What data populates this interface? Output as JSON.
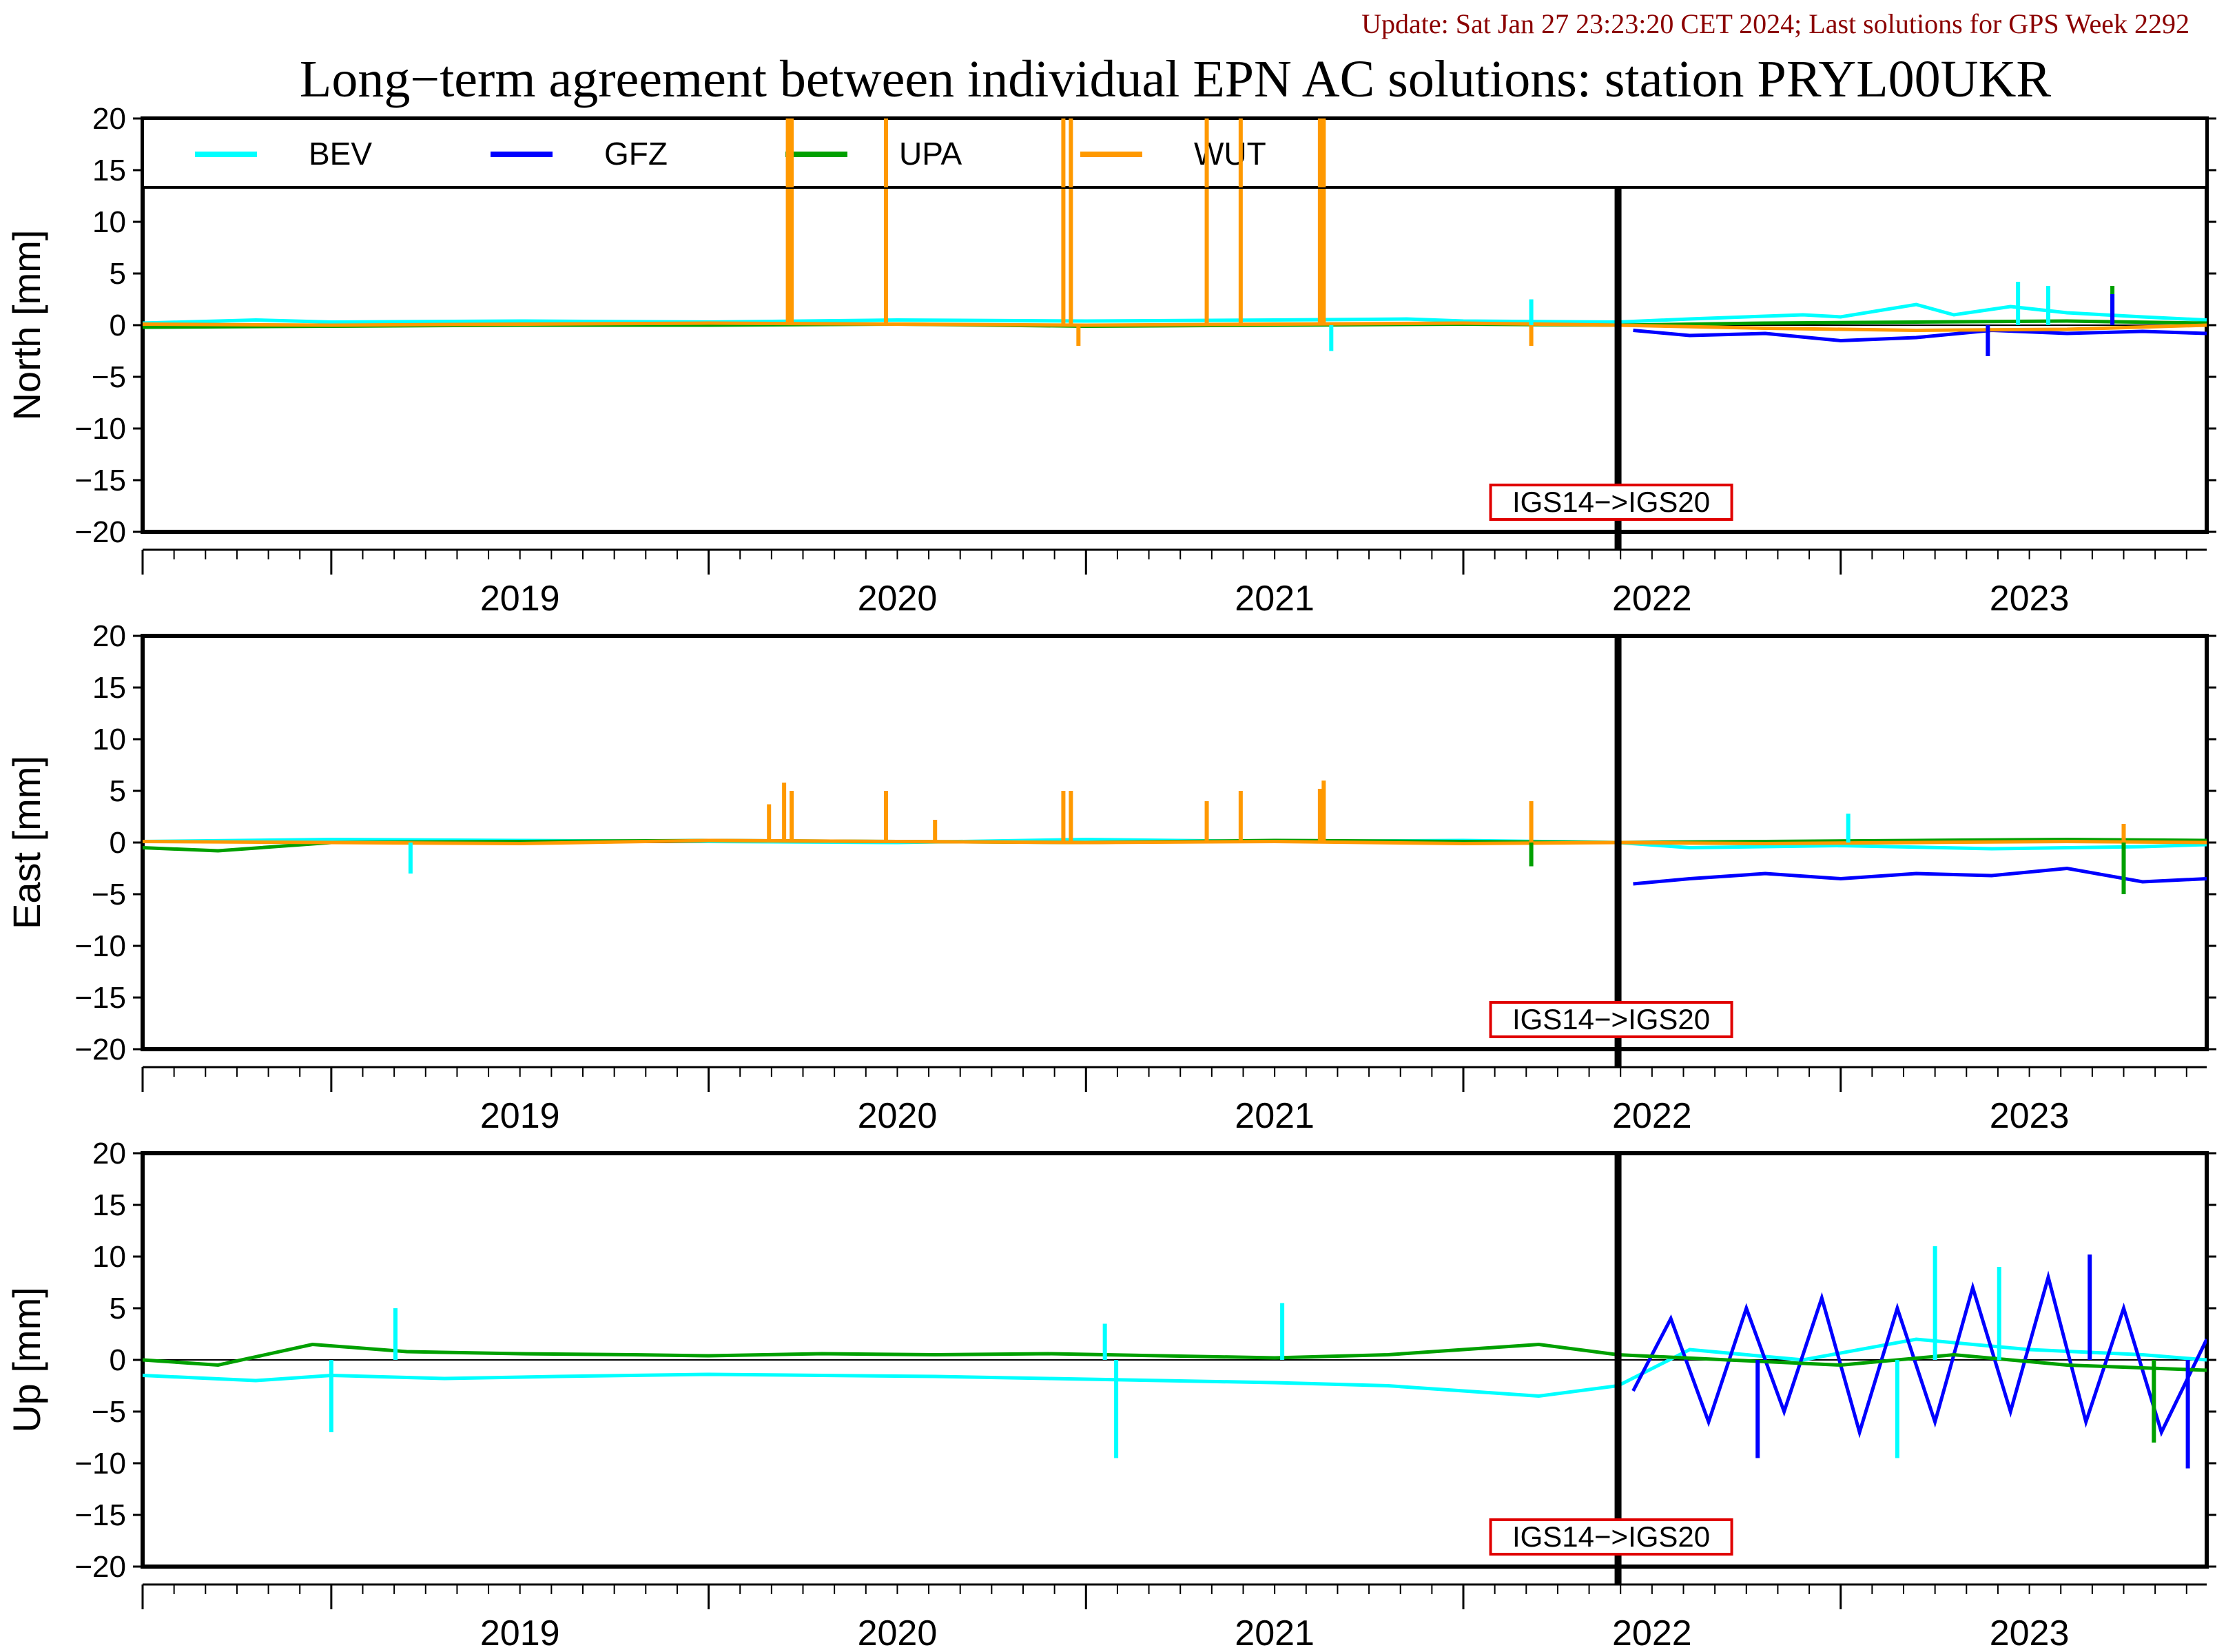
{
  "header": {
    "update_text": "Update: Sat Jan 27 23:23:20 CET 2024; Last solutions for GPS Week 2292",
    "title": "Long−term agreement between individual EPN AC solutions: station PRYL00UKR"
  },
  "colors": {
    "BEV": "#00ffff",
    "GFZ": "#0000ff",
    "UPA": "#00a000",
    "WUT": "#ff9900",
    "update_text": "#8b0000",
    "annotation_border": "#e00000"
  },
  "legend": {
    "items": [
      {
        "name": "BEV",
        "color": "#00ffff"
      },
      {
        "name": "GFZ",
        "color": "#0000ff"
      },
      {
        "name": "UPA",
        "color": "#00a000"
      },
      {
        "name": "WUT",
        "color": "#ff9900"
      }
    ]
  },
  "chart_data": [
    {
      "type": "line",
      "panel": "North",
      "ylabel": "North [mm]",
      "ylim": [
        -20,
        20
      ],
      "yticks": [
        -20,
        -15,
        -10,
        -5,
        0,
        5,
        10,
        15,
        20
      ],
      "xlim": [
        2018.5,
        2023.97
      ],
      "x_tick_labels": [
        "2019",
        "2020",
        "2021",
        "2022",
        "2023"
      ],
      "annotation": {
        "text": "IGS14−>IGS20",
        "x": 2022.41
      },
      "series": [
        {
          "name": "BEV",
          "x": [
            2018.5,
            2018.8,
            2019.0,
            2019.5,
            2020.0,
            2020.5,
            2021.0,
            2021.5,
            2021.85,
            2022.0,
            2022.41,
            2022.6,
            2022.9,
            2023.0,
            2023.2,
            2023.3,
            2023.45,
            2023.6,
            2023.8,
            2023.97
          ],
          "y": [
            0.2,
            0.5,
            0.3,
            0.4,
            0.3,
            0.5,
            0.4,
            0.5,
            0.6,
            0.4,
            0.3,
            0.6,
            1.0,
            0.8,
            2.0,
            1.0,
            1.8,
            1.2,
            0.8,
            0.5
          ]
        },
        {
          "name": "GFZ",
          "x": [
            2022.45,
            2022.6,
            2022.8,
            2023.0,
            2023.2,
            2023.4,
            2023.6,
            2023.8,
            2023.97
          ],
          "y": [
            -0.5,
            -1.0,
            -0.8,
            -1.5,
            -1.2,
            -0.5,
            -0.8,
            -0.6,
            -0.8
          ]
        },
        {
          "name": "UPA",
          "x": [
            2018.5,
            2019.0,
            2019.5,
            2020.0,
            2020.5,
            2021.0,
            2021.5,
            2022.0,
            2022.41,
            2022.8,
            2023.2,
            2023.6,
            2023.97
          ],
          "y": [
            -0.2,
            -0.1,
            0.0,
            0.0,
            0.1,
            -0.1,
            0.0,
            0.1,
            0.0,
            0.2,
            0.3,
            0.4,
            0.2
          ]
        },
        {
          "name": "WUT",
          "x": [
            2018.5,
            2019.0,
            2019.5,
            2020.0,
            2020.5,
            2021.0,
            2021.5,
            2022.0,
            2022.41,
            2022.8,
            2023.2,
            2023.6,
            2023.97
          ],
          "y": [
            0.1,
            0.0,
            0.1,
            0.2,
            0.1,
            0.0,
            0.1,
            0.2,
            0.0,
            -0.3,
            -0.5,
            -0.4,
            0.0
          ]
        }
      ],
      "spikes": [
        {
          "series": "WUT",
          "x": 2020.21,
          "y": 20
        },
        {
          "series": "WUT",
          "x": 2020.22,
          "y": 20
        },
        {
          "series": "WUT",
          "x": 2020.47,
          "y": 20
        },
        {
          "series": "WUT",
          "x": 2020.94,
          "y": 20
        },
        {
          "series": "WUT",
          "x": 2020.96,
          "y": 20
        },
        {
          "series": "WUT",
          "x": 2021.32,
          "y": 20
        },
        {
          "series": "WUT",
          "x": 2021.41,
          "y": 20
        },
        {
          "series": "WUT",
          "x": 2021.62,
          "y": 20
        },
        {
          "series": "WUT",
          "x": 2021.63,
          "y": 20
        },
        {
          "series": "WUT",
          "x": 2022.18,
          "y": -2
        },
        {
          "series": "WUT",
          "x": 2020.98,
          "y": -2
        },
        {
          "series": "BEV",
          "x": 2022.18,
          "y": 2.5
        },
        {
          "series": "BEV",
          "x": 2021.65,
          "y": -2.5
        },
        {
          "series": "BEV",
          "x": 2023.47,
          "y": 4.2
        },
        {
          "series": "BEV",
          "x": 2023.55,
          "y": 3.8
        },
        {
          "series": "UPA",
          "x": 2023.72,
          "y": 3.8
        },
        {
          "series": "GFZ",
          "x": 2023.72,
          "y": 3.0
        },
        {
          "series": "GFZ",
          "x": 2023.39,
          "y": -3.0
        }
      ]
    },
    {
      "type": "line",
      "panel": "East",
      "ylabel": "East [mm]",
      "ylim": [
        -20,
        20
      ],
      "yticks": [
        -20,
        -15,
        -10,
        -5,
        0,
        5,
        10,
        15,
        20
      ],
      "xlim": [
        2018.5,
        2023.97
      ],
      "x_tick_labels": [
        "2019",
        "2020",
        "2021",
        "2022",
        "2023"
      ],
      "annotation": {
        "text": "IGS14−>IGS20",
        "x": 2022.41
      },
      "series": [
        {
          "name": "BEV",
          "x": [
            2018.5,
            2019.0,
            2019.5,
            2020.0,
            2020.5,
            2021.0,
            2021.5,
            2022.0,
            2022.41,
            2022.6,
            2023.0,
            2023.4,
            2023.8,
            2023.97
          ],
          "y": [
            0.1,
            0.3,
            0.2,
            0.1,
            0.0,
            0.3,
            0.1,
            0.2,
            0.0,
            -0.5,
            -0.3,
            -0.6,
            -0.4,
            -0.2
          ]
        },
        {
          "name": "GFZ",
          "x": [
            2022.45,
            2022.6,
            2022.8,
            2023.0,
            2023.2,
            2023.4,
            2023.6,
            2023.8,
            2023.97
          ],
          "y": [
            -4.0,
            -3.5,
            -3.0,
            -3.5,
            -3.0,
            -3.2,
            -2.5,
            -3.8,
            -3.5
          ]
        },
        {
          "name": "UPA",
          "x": [
            2018.5,
            2018.7,
            2019.0,
            2019.5,
            2020.0,
            2020.5,
            2021.0,
            2021.5,
            2022.0,
            2022.41,
            2022.8,
            2023.2,
            2023.6,
            2023.97
          ],
          "y": [
            -0.5,
            -0.8,
            0.0,
            0.1,
            0.2,
            0.1,
            0.0,
            0.2,
            0.1,
            0.0,
            0.1,
            0.2,
            0.3,
            0.2
          ]
        },
        {
          "name": "WUT",
          "x": [
            2018.5,
            2019.0,
            2019.5,
            2020.0,
            2020.5,
            2021.0,
            2021.5,
            2022.0,
            2022.41,
            2022.8,
            2023.2,
            2023.6,
            2023.97
          ],
          "y": [
            0.1,
            0.0,
            -0.1,
            0.2,
            0.1,
            0.0,
            0.1,
            -0.1,
            0.0,
            -0.1,
            0.0,
            0.1,
            0.0
          ]
        }
      ],
      "spikes": [
        {
          "series": "WUT",
          "x": 2020.16,
          "y": 3.7
        },
        {
          "series": "WUT",
          "x": 2020.2,
          "y": 5.8
        },
        {
          "series": "WUT",
          "x": 2020.22,
          "y": 5.0
        },
        {
          "series": "WUT",
          "x": 2020.47,
          "y": 5.0
        },
        {
          "series": "WUT",
          "x": 2020.6,
          "y": 2.2
        },
        {
          "series": "WUT",
          "x": 2020.94,
          "y": 5.0
        },
        {
          "series": "WUT",
          "x": 2020.96,
          "y": 5.0
        },
        {
          "series": "WUT",
          "x": 2021.32,
          "y": 4.0
        },
        {
          "series": "WUT",
          "x": 2021.41,
          "y": 5.0
        },
        {
          "series": "WUT",
          "x": 2021.62,
          "y": 5.2
        },
        {
          "series": "WUT",
          "x": 2021.63,
          "y": 6.0
        },
        {
          "series": "WUT",
          "x": 2022.18,
          "y": 4.0
        },
        {
          "series": "WUT",
          "x": 2023.75,
          "y": 1.8
        },
        {
          "series": "BEV",
          "x": 2019.21,
          "y": -3.0
        },
        {
          "series": "BEV",
          "x": 2023.02,
          "y": 2.8
        },
        {
          "series": "UPA",
          "x": 2022.18,
          "y": -2.3
        },
        {
          "series": "UPA",
          "x": 2023.75,
          "y": -5.0
        }
      ]
    },
    {
      "type": "line",
      "panel": "Up",
      "ylabel": "Up [mm]",
      "ylim": [
        -20,
        20
      ],
      "yticks": [
        -20,
        -15,
        -10,
        -5,
        0,
        5,
        10,
        15,
        20
      ],
      "xlim": [
        2018.5,
        2023.97
      ],
      "x_tick_labels": [
        "2019",
        "2020",
        "2021",
        "2022",
        "2023"
      ],
      "annotation": {
        "text": "IGS14−>IGS20",
        "x": 2022.41
      },
      "series": [
        {
          "name": "BEV",
          "x": [
            2018.5,
            2018.8,
            2019.0,
            2019.3,
            2019.6,
            2020.0,
            2020.3,
            2020.6,
            2020.9,
            2021.2,
            2021.5,
            2021.8,
            2022.0,
            2022.2,
            2022.41,
            2022.6,
            2022.9,
            2023.2,
            2023.5,
            2023.8,
            2023.97
          ],
          "y": [
            -1.5,
            -2.0,
            -1.5,
            -1.8,
            -1.6,
            -1.4,
            -1.5,
            -1.6,
            -1.8,
            -2.0,
            -2.2,
            -2.5,
            -3.0,
            -3.5,
            -2.5,
            1.0,
            0.0,
            2.0,
            1.0,
            0.5,
            0.0
          ]
        },
        {
          "name": "GFZ",
          "x": [
            2022.45,
            2022.55,
            2022.65,
            2022.75,
            2022.85,
            2022.95,
            2023.05,
            2023.15,
            2023.25,
            2023.35,
            2023.45,
            2023.55,
            2023.65,
            2023.75,
            2023.85,
            2023.97
          ],
          "y": [
            -3.0,
            4.0,
            -6.0,
            5.0,
            -5.0,
            6.0,
            -7.0,
            5.0,
            -6.0,
            7.0,
            -5.0,
            8.0,
            -6.0,
            5.0,
            -7.0,
            2.0
          ]
        },
        {
          "name": "UPA",
          "x": [
            2018.5,
            2018.7,
            2018.95,
            2019.2,
            2019.5,
            2019.8,
            2020.0,
            2020.3,
            2020.6,
            2020.9,
            2021.2,
            2021.5,
            2021.8,
            2022.0,
            2022.2,
            2022.41,
            2022.7,
            2023.0,
            2023.3,
            2023.6,
            2023.97
          ],
          "y": [
            0.0,
            -0.5,
            1.5,
            0.8,
            0.6,
            0.5,
            0.4,
            0.6,
            0.5,
            0.6,
            0.4,
            0.2,
            0.5,
            1.0,
            1.5,
            0.5,
            0.0,
            -0.5,
            0.5,
            -0.5,
            -1.0
          ]
        }
      ],
      "spikes": [
        {
          "series": "BEV",
          "x": 2019.0,
          "y": -7.0
        },
        {
          "series": "BEV",
          "x": 2019.17,
          "y": 5.0
        },
        {
          "series": "BEV",
          "x": 2021.08,
          "y": -9.5
        },
        {
          "series": "BEV",
          "x": 2021.05,
          "y": 3.5
        },
        {
          "series": "BEV",
          "x": 2021.52,
          "y": 5.5
        },
        {
          "series": "BEV",
          "x": 2023.25,
          "y": 11.0
        },
        {
          "series": "BEV",
          "x": 2023.15,
          "y": -9.5
        },
        {
          "series": "BEV",
          "x": 2023.42,
          "y": 9.0
        },
        {
          "series": "GFZ",
          "x": 2023.66,
          "y": 10.2
        },
        {
          "series": "GFZ",
          "x": 2023.92,
          "y": -10.5
        },
        {
          "series": "GFZ",
          "x": 2022.78,
          "y": -9.5
        },
        {
          "series": "UPA",
          "x": 2023.83,
          "y": -8.0
        }
      ]
    }
  ]
}
